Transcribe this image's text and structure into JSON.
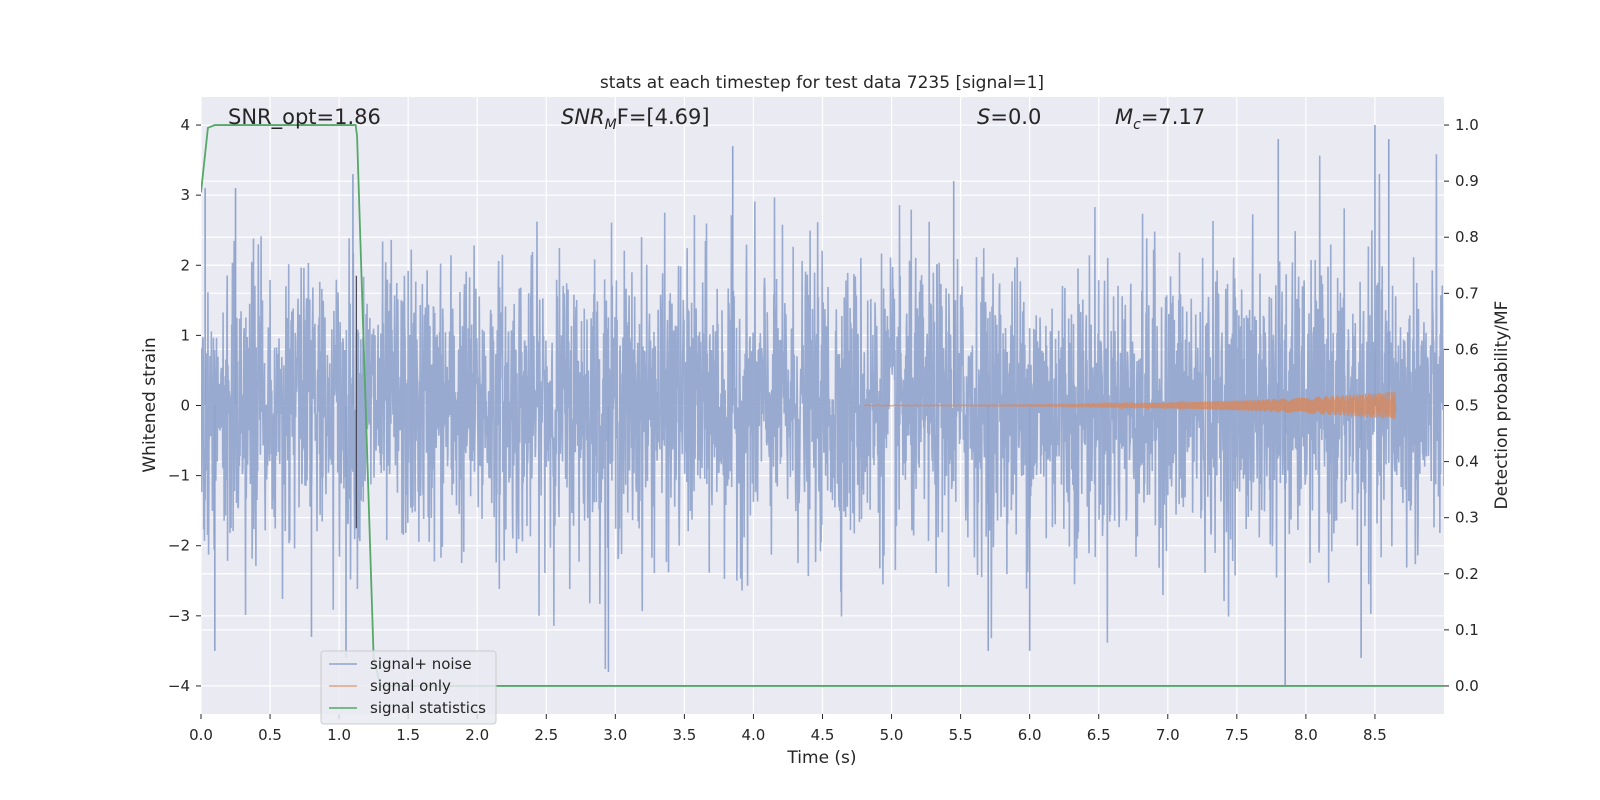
{
  "chart_data": {
    "type": "line",
    "title": "stats at each timestep for test data 7235 [signal=1]",
    "xlabel": "Time (s)",
    "ylabel": "Whitened strain",
    "y2label": "Detection probability/MF",
    "xlim": [
      0.0,
      9.0
    ],
    "ylim": [
      -4.4,
      4.4
    ],
    "y2lim": [
      -0.05,
      1.05
    ],
    "x_ticks": [
      0.0,
      0.5,
      1.0,
      1.5,
      2.0,
      2.5,
      3.0,
      3.5,
      4.0,
      4.5,
      5.0,
      5.5,
      6.0,
      6.5,
      7.0,
      7.5,
      8.0,
      8.5
    ],
    "x_tick_labels": [
      "0.0",
      "0.5",
      "1.0",
      "1.5",
      "2.0",
      "2.5",
      "3.0",
      "3.5",
      "4.0",
      "4.5",
      "5.0",
      "5.5",
      "6.0",
      "6.5",
      "7.0",
      "7.5",
      "8.0",
      "8.5"
    ],
    "y_ticks": [
      -4,
      -3,
      -2,
      -1,
      0,
      1,
      2,
      3,
      4
    ],
    "y_tick_labels": [
      "−4",
      "−3",
      "−2",
      "−1",
      "0",
      "1",
      "2",
      "3",
      "4"
    ],
    "y2_ticks": [
      0.0,
      0.1,
      0.2,
      0.3,
      0.4,
      0.5,
      0.6,
      0.7,
      0.8,
      0.9,
      1.0
    ],
    "y2_tick_labels": [
      "0.0",
      "0.1",
      "0.2",
      "0.3",
      "0.4",
      "0.5",
      "0.6",
      "0.7",
      "0.8",
      "0.9",
      "1.0"
    ],
    "grid": true,
    "legend_position": "bottom-left",
    "annotations": {
      "snr_opt": "SNR_opt=1.86",
      "snr_mf_base": "SNR",
      "snr_mf_sub": "M",
      "snr_mf_rest": "F=[4.69]",
      "s_sym": "S",
      "s_val": "=0.0",
      "mc_sym": "M",
      "mc_sub": "c",
      "mc_val": "=7.17"
    },
    "series": [
      {
        "name": "signal+ noise",
        "color": "#8fa3cc",
        "axis": "left",
        "kind": "noise",
        "sigma": 1.0,
        "x_range": [
          0.0,
          9.0
        ],
        "peaks": [
          [
            0.03,
            3.1
          ],
          [
            0.1,
            -3.5
          ],
          [
            0.25,
            3.1
          ],
          [
            0.8,
            -3.3
          ],
          [
            1.05,
            -3.6
          ],
          [
            1.1,
            3.3
          ],
          [
            2.95,
            -3.8
          ],
          [
            3.85,
            3.7
          ],
          [
            5.45,
            3.2
          ],
          [
            5.7,
            -3.5
          ],
          [
            6.0,
            -3.5
          ],
          [
            7.8,
            3.8
          ],
          [
            7.85,
            -4.0
          ],
          [
            8.5,
            4.0
          ],
          [
            8.6,
            3.8
          ],
          [
            8.4,
            -3.6
          ]
        ]
      },
      {
        "name": "signal only",
        "color": "#dd8452",
        "axis": "left",
        "kind": "chirp",
        "x_range": [
          4.8,
          8.65
        ],
        "amplitude_start": 0.005,
        "amplitude_end": 0.2
      },
      {
        "name": "signal statistics",
        "color": "#55a868",
        "axis": "right",
        "kind": "line",
        "x": [
          0.0,
          0.05,
          0.1,
          0.2,
          0.4,
          0.7,
          1.0,
          1.12,
          1.13,
          1.25,
          1.3,
          2.0,
          4.0,
          6.0,
          8.0,
          9.0
        ],
        "y": [
          0.88,
          0.995,
          1.0,
          1.0,
          1.0,
          1.0,
          1.0,
          1.0,
          0.98,
          0.05,
          0.0,
          0.0,
          0.0,
          0.0,
          0.0,
          0.0
        ]
      }
    ],
    "vline_x": 1.125
  }
}
